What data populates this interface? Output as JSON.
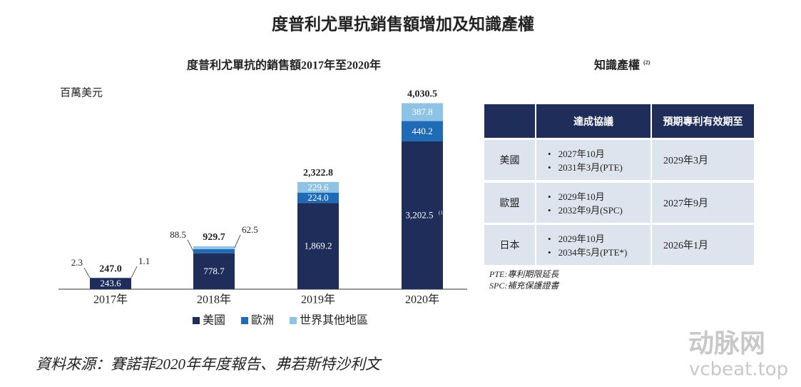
{
  "title": "度普利尤單抗銷售額增加及知識產權",
  "chart_data": {
    "type": "bar",
    "stacked": true,
    "title": "度普利尤單抗的銷售額2017年至2020年",
    "y_label": "百萬美元",
    "categories": [
      "2017年",
      "2018年",
      "2019年",
      "2020年"
    ],
    "series": [
      {
        "name": "美國",
        "color": "#1f2d5a",
        "values": [
          243.6,
          778.7,
          1869.2,
          3202.5
        ],
        "value_labels": [
          "243.6",
          "778.7",
          "1,869.2",
          "3,202.5"
        ],
        "label_note": "(1)"
      },
      {
        "name": "歐洲",
        "color": "#1f6bb5",
        "values": [
          2.3,
          88.5,
          224.0,
          440.2
        ],
        "value_labels": [
          "2.3",
          "88.5",
          "224.0",
          "440.2"
        ]
      },
      {
        "name": "世界其他地區",
        "color": "#8ec3e6",
        "values": [
          1.1,
          62.5,
          229.6,
          387.8
        ],
        "value_labels": [
          "1.1",
          "62.5",
          "229.6",
          "387.8"
        ]
      }
    ],
    "totals": [
      247.0,
      929.7,
      2322.8,
      4030.5
    ],
    "total_labels": [
      "247.0",
      "929.7",
      "2,322.8",
      "4,030.5"
    ],
    "ylim": [
      0,
      4100
    ]
  },
  "ip": {
    "title": "知識產權",
    "title_note": "(2)",
    "headers": [
      "達成協議",
      "預期專利有效期至"
    ],
    "rows": [
      {
        "region": "美國",
        "agreements": [
          "2027年10月",
          "2031年3月(PTE)"
        ],
        "expiry": "2029年3月"
      },
      {
        "region": "歐盟",
        "agreements": [
          "2029年10月",
          "2032年9月(SPC)"
        ],
        "expiry": "2027年9月"
      },
      {
        "region": "日本",
        "agreements": [
          "2029年10月",
          "2034年5月(PTE*)"
        ],
        "expiry": "2026年1月"
      }
    ],
    "notes": [
      "PTE:專利期限延長",
      "SPC:補充保護證書"
    ]
  },
  "source": "資料來源：賽諾菲2020年年度報告、弗若斯特沙利文",
  "watermark": {
    "brand": "动脉网",
    "site": "vcbeat.top"
  }
}
